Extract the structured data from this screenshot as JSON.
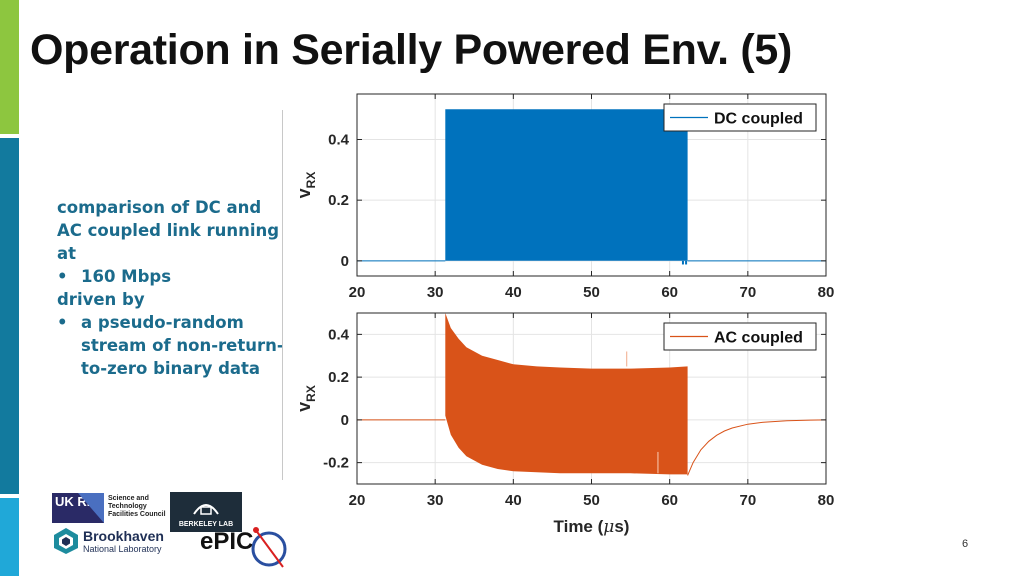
{
  "slide": {
    "title": "Operation in Serially Powered Env. (5)",
    "page_number": "6"
  },
  "description": {
    "lines": [
      "comparison of DC and",
      "AC coupled link running",
      "at"
    ],
    "bullet1": "160 Mbps",
    "line4": "driven by",
    "bullet2": "a pseudo-random stream of non-return-to-zero binary data"
  },
  "logos": {
    "ukri": "UK RI",
    "stfc_lines": [
      "Science and",
      "Technology",
      "Facilities Council"
    ],
    "lbl": "BERKELEY LAB",
    "bnl_name": "Brookhaven",
    "bnl_sub": "National Laboratory",
    "epic": "ePIC"
  },
  "chart_data": [
    {
      "type": "line",
      "series": [
        {
          "name": "DC coupled",
          "color": "#0072bd",
          "baseline": 0,
          "active_x_range": [
            31.3,
            62.3
          ],
          "band": {
            "x": [
              31.3,
              62.3
            ],
            "lower": [
              0,
              0
            ],
            "upper": [
              0.5,
              0.5
            ]
          },
          "glitches": [
            [
              61.7,
              -0.012
            ],
            [
              62.1,
              -0.012
            ]
          ]
        }
      ],
      "x_range": [
        20,
        80
      ],
      "x_ticks": [
        20,
        30,
        40,
        50,
        60,
        70,
        80
      ],
      "y_range": [
        -0.05,
        0.55
      ],
      "y_ticks": [
        0,
        0.2,
        0.4
      ],
      "y_tick_labels": [
        "0",
        "0.2",
        "0.4"
      ],
      "ylabel": "v",
      "ylabel_sub": "RX",
      "xlabel": "",
      "grid": true,
      "legend": "top-right"
    },
    {
      "type": "line",
      "series": [
        {
          "name": "AC coupled",
          "color": "#d95319",
          "baseline": 0,
          "active_x_range": [
            31.3,
            62.3
          ],
          "band": {
            "x": [
              31.3,
              32,
              33,
              34,
              36,
              38,
              40,
              43,
              46,
              50,
              55,
              60,
              62.3
            ],
            "upper": [
              0.5,
              0.43,
              0.38,
              0.34,
              0.3,
              0.28,
              0.26,
              0.25,
              0.245,
              0.24,
              0.24,
              0.245,
              0.25
            ],
            "lower": [
              0.02,
              -0.07,
              -0.13,
              -0.17,
              -0.21,
              -0.23,
              -0.24,
              -0.245,
              -0.25,
              -0.25,
              -0.25,
              -0.255,
              -0.255
            ]
          },
          "decay_tail": {
            "x": [
              62.3,
              63,
              64,
              65,
              66,
              67,
              68,
              70,
              72,
              75,
              78,
              80
            ],
            "y": [
              -0.26,
              -0.2,
              -0.14,
              -0.1,
              -0.072,
              -0.052,
              -0.038,
              -0.02,
              -0.011,
              -0.004,
              -0.001,
              0
            ]
          },
          "spikes": [
            [
              54.5,
              0.25,
              0.32
            ],
            [
              58.5,
              -0.25,
              -0.15
            ]
          ]
        }
      ],
      "x_range": [
        20,
        80
      ],
      "x_ticks": [
        20,
        30,
        40,
        50,
        60,
        70,
        80
      ],
      "y_range": [
        -0.3,
        0.5
      ],
      "y_ticks": [
        -0.2,
        0,
        0.2,
        0.4
      ],
      "y_tick_labels": [
        "-0.2",
        "0",
        "0.2",
        "0.4"
      ],
      "ylabel": "v",
      "ylabel_sub": "RX",
      "xlabel": "Time (",
      "xlabel_mu": "μ",
      "xlabel_end": "s)",
      "grid": true,
      "legend": "top-right"
    }
  ]
}
